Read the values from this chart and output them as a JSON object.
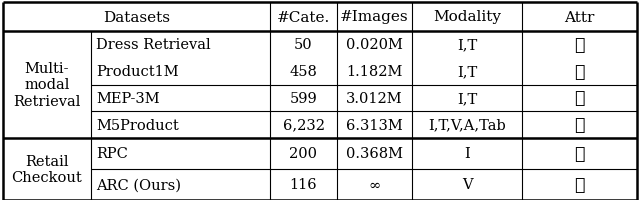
{
  "header": [
    "Datasets",
    "#Cate.",
    "#Images",
    "Modality",
    "Attr"
  ],
  "col1_groups": [
    {
      "label": "Multi-\nmodal\nRetrieval",
      "rows": 4
    },
    {
      "label": "Retail\nCheckout",
      "rows": 2
    }
  ],
  "col2_values": [
    "Dress Retrieval",
    "Product1M",
    "MEP-3M",
    "M5Product",
    "RPC",
    "ARC (Ours)"
  ],
  "col3_values": [
    "50",
    "458",
    "599",
    "6,232",
    "200",
    "116"
  ],
  "col4_values": [
    "0.020M",
    "1.182M",
    "3.012M",
    "6.313M",
    "0.368M",
    "∞"
  ],
  "col5_values": [
    "I,T",
    "I,T",
    "I,T",
    "I,T,V,A,Tab",
    "I",
    "V"
  ],
  "col6_values": [
    "✗",
    "✗",
    "✗",
    "✗",
    "✗",
    "✓"
  ],
  "bg_color": "#ffffff",
  "line_color": "#000000",
  "text_color": "#000000",
  "font_size": 10.5,
  "header_font_size": 11
}
